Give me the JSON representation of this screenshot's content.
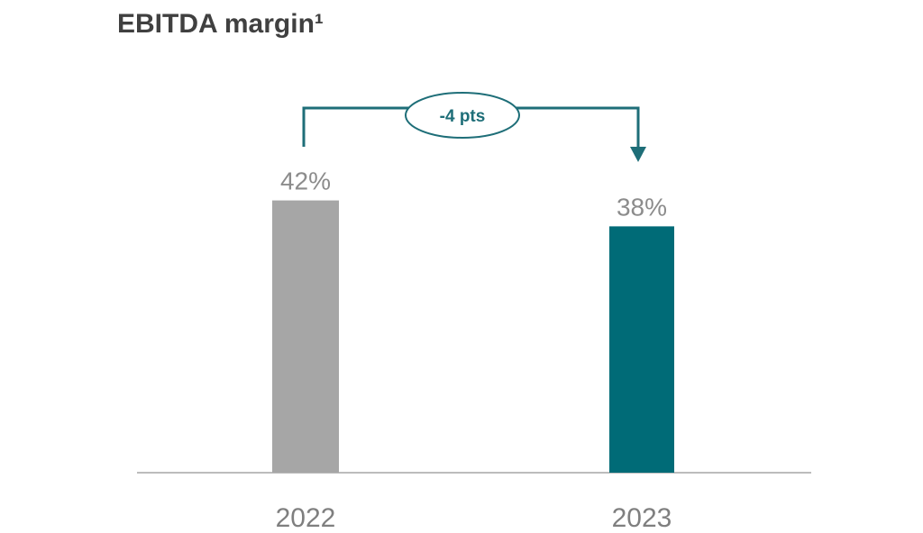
{
  "chart_data": {
    "type": "bar",
    "title": "EBITDA margin¹",
    "categories": [
      "2022",
      "2023"
    ],
    "values": [
      42,
      38
    ],
    "value_labels": [
      "42%",
      "38%"
    ],
    "bar_colors": [
      "#a6a6a6",
      "#006b77"
    ],
    "ylim": [
      0,
      42
    ],
    "grid": false,
    "annotation": {
      "text": "-4 pts",
      "from": "2022",
      "to": "2023",
      "color": "#1e6e78"
    },
    "label_color": "#8c8c8c"
  }
}
